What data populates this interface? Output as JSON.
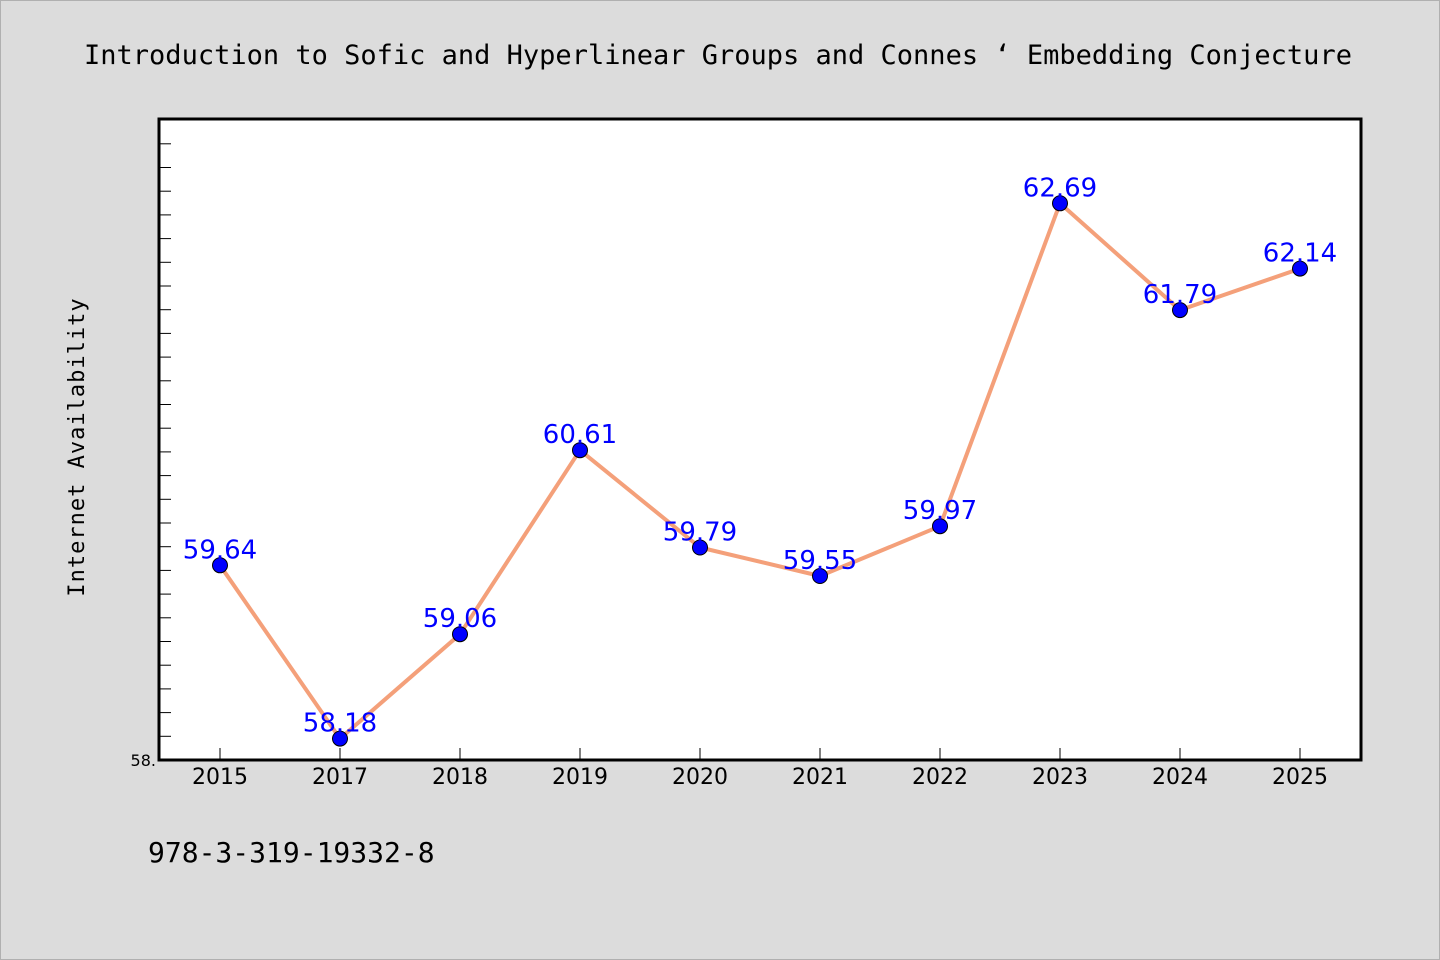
{
  "figure": {
    "background": "#dcdcdc",
    "isbn_note": "978-3-319-19332-8"
  },
  "chart_data": {
    "type": "line",
    "title": "Introduction to Sofic and Hyperlinear Groups and Connes ‘ Embedding Conjecture",
    "xlabel": "",
    "ylabel": "Internet Availability",
    "x": [
      "2015",
      "2017",
      "2018",
      "2019",
      "2020",
      "2021",
      "2022",
      "2023",
      "2024",
      "2025"
    ],
    "series": [
      {
        "values": [
          59.64,
          58.18,
          59.06,
          60.61,
          59.79,
          59.55,
          59.97,
          62.69,
          61.79,
          62.14
        ],
        "labels": [
          "59.64",
          "58.18",
          "59.06",
          "60.61",
          "59.79",
          "59.55",
          "59.97",
          "62.69",
          "61.79",
          "62.14"
        ],
        "line_color": "#f4a07a",
        "marker_color": "#0000ff"
      }
    ],
    "y_tick_label": "58.",
    "ylim": [
      58.0,
      63.4
    ],
    "grid": false,
    "legend": "none",
    "plot_background": "#ffffff",
    "label_color": "#0000ff"
  }
}
